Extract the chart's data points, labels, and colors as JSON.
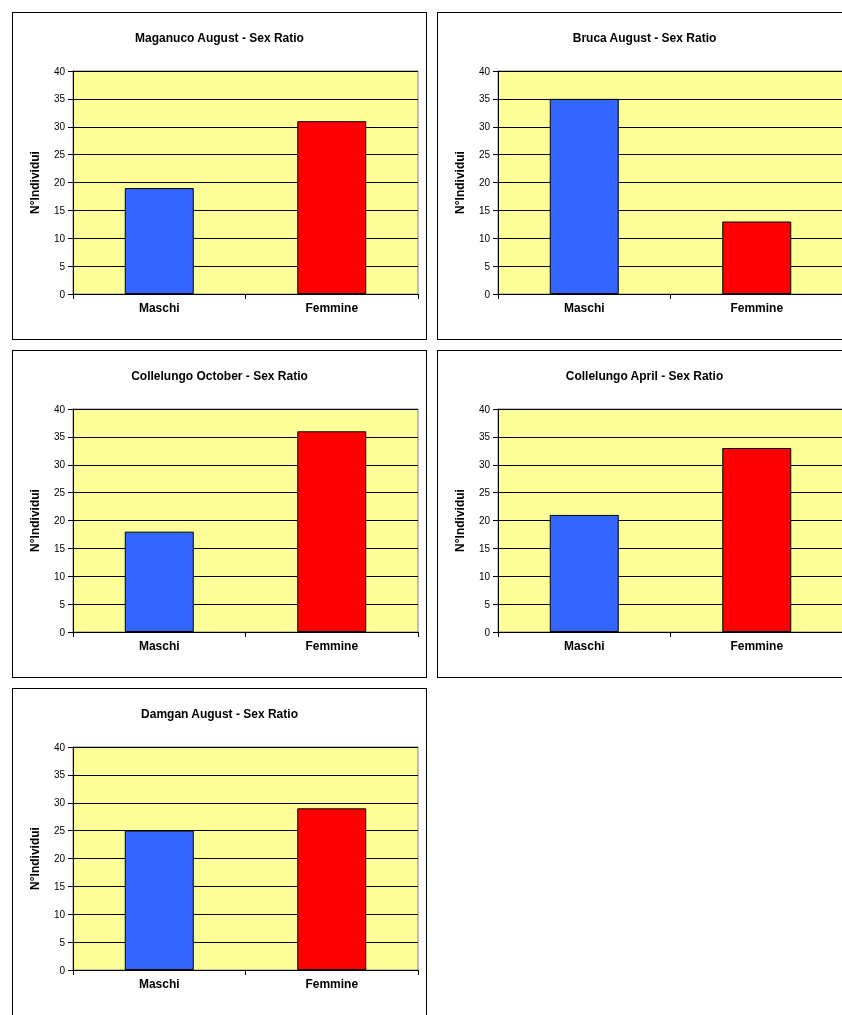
{
  "chart_data": [
    {
      "type": "bar",
      "title": "Maganuco August - Sex Ratio",
      "ylabel": "N°Individui",
      "categories": [
        "Maschi",
        "Femmine"
      ],
      "values": [
        19,
        31
      ],
      "colors": [
        "#3366ff",
        "#ff0000"
      ],
      "ylim": [
        0,
        40
      ],
      "yticks": [
        0,
        5,
        10,
        15,
        20,
        25,
        30,
        35,
        40
      ],
      "grid": "y"
    },
    {
      "type": "bar",
      "title": "Bruca August - Sex Ratio",
      "ylabel": "N°Individui",
      "categories": [
        "Maschi",
        "Femmine"
      ],
      "values": [
        35,
        13
      ],
      "colors": [
        "#3366ff",
        "#ff0000"
      ],
      "ylim": [
        0,
        40
      ],
      "yticks": [
        0,
        5,
        10,
        15,
        20,
        25,
        30,
        35,
        40
      ],
      "grid": "y"
    },
    {
      "type": "bar",
      "title": "Collelungo October - Sex Ratio",
      "ylabel": "N°Individui",
      "categories": [
        "Maschi",
        "Femmine"
      ],
      "values": [
        18,
        36
      ],
      "colors": [
        "#3366ff",
        "#ff0000"
      ],
      "ylim": [
        0,
        40
      ],
      "yticks": [
        0,
        5,
        10,
        15,
        20,
        25,
        30,
        35,
        40
      ],
      "grid": "y"
    },
    {
      "type": "bar",
      "title": "Collelungo April - Sex Ratio",
      "ylabel": "N°Individui",
      "categories": [
        "Maschi",
        "Femmine"
      ],
      "values": [
        21,
        33
      ],
      "colors": [
        "#3366ff",
        "#ff0000"
      ],
      "ylim": [
        0,
        40
      ],
      "yticks": [
        0,
        5,
        10,
        15,
        20,
        25,
        30,
        35,
        40
      ],
      "grid": "y"
    },
    {
      "type": "bar",
      "title": "Damgan August - Sex Ratio",
      "ylabel": "N°Individui",
      "categories": [
        "Maschi",
        "Femmine"
      ],
      "values": [
        25,
        29
      ],
      "colors": [
        "#3366ff",
        "#ff0000"
      ],
      "ylim": [
        0,
        40
      ],
      "yticks": [
        0,
        5,
        10,
        15,
        20,
        25,
        30,
        35,
        40
      ],
      "grid": "y"
    }
  ]
}
